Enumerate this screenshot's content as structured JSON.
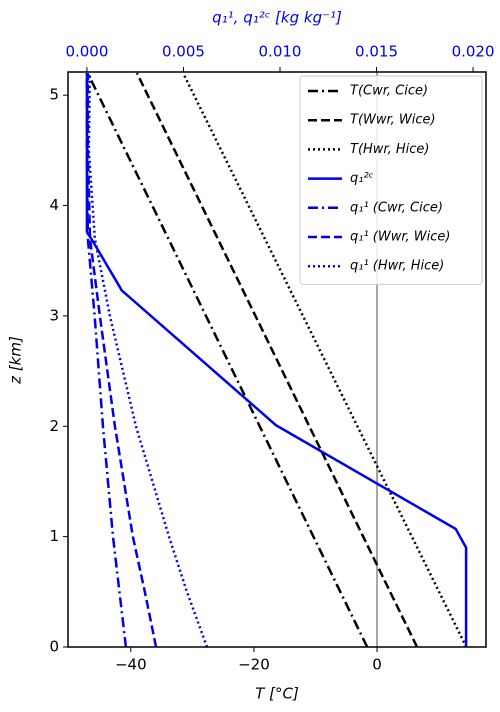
{
  "chart_data": {
    "type": "line",
    "x_label": "T [°C]",
    "x2_label": "q₁¹, q₁²ᶜ [kg kg⁻¹]",
    "y_label": "z [km]",
    "xlim": [
      -50.2,
      17.7
    ],
    "xticks": [
      {
        "value": -40,
        "label": "−40"
      },
      {
        "value": -20,
        "label": "−20"
      },
      0
    ],
    "x2lim": [
      -0.00098,
      0.02067
    ],
    "x2ticks": [
      {
        "value": 0,
        "label": "0.000"
      },
      {
        "value": 0.005,
        "label": "0.005"
      },
      {
        "value": 0.01,
        "label": "0.010"
      },
      {
        "value": 0.015,
        "label": "0.015"
      },
      {
        "value": 0.02,
        "label": "0.020"
      }
    ],
    "x2_color": "#0000ee",
    "ylim": [
      0,
      5.21
    ],
    "yticks": [
      0,
      1,
      2,
      3,
      4,
      5
    ],
    "vline": 0,
    "legend": "upper right",
    "series": [
      {
        "name": "T(Cwr, Cice)",
        "color": "#000000",
        "style": "dashdot",
        "axis": "x",
        "x": [
          -1.6,
          -47
        ],
        "y": [
          0,
          5.2
        ]
      },
      {
        "name": "T(Wwr, Wice)",
        "color": "#000000",
        "style": "dashed",
        "axis": "x",
        "x": [
          6.5,
          -39
        ],
        "y": [
          0,
          5.2
        ]
      },
      {
        "name": "T(Hwr, Hice)",
        "color": "#000000",
        "style": "dotted",
        "axis": "x",
        "x": [
          14.5,
          -31.5
        ],
        "y": [
          0,
          5.2
        ]
      },
      {
        "name": "q₁²ᶜ",
        "color": "#0000ee",
        "style": "solid",
        "axis": "x2",
        "x": [
          0.01964,
          0.01964,
          0.0191,
          0.00979,
          0.00181,
          0.00026,
          0,
          0
        ],
        "y": [
          0,
          0.9,
          1.07,
          2.01,
          3.23,
          3.69,
          3.76,
          5.2
        ]
      },
      {
        "name": "q₁¹ (Cwr, Cice)",
        "color": "#0000ee",
        "style": "dashdot",
        "axis": "x2",
        "x": [
          0.00202,
          0.00135,
          0.00083,
          0.0004,
          5e-05,
          0,
          0
        ],
        "y": [
          0,
          1,
          2,
          3,
          3.7,
          4.5,
          5.2
        ]
      },
      {
        "name": "q₁¹ (Wwr, Wice)",
        "color": "#0000ee",
        "style": "dashed",
        "axis": "x2",
        "x": [
          0.00358,
          0.003,
          0.00238,
          0.00145,
          0.00067,
          0.00016,
          5e-05,
          5e-05
        ],
        "y": [
          0,
          0.5,
          1,
          2,
          3,
          3.7,
          4.5,
          5.2
        ]
      },
      {
        "name": "q₁¹ (Hwr, Hice)",
        "color": "#0000ee",
        "style": "dotted",
        "axis": "x2",
        "x": [
          0.00622,
          0.00518,
          0.00425,
          0.00254,
          0.00119,
          0.00041,
          0.0001,
          0.00015
        ],
        "y": [
          0,
          0.5,
          1,
          2,
          3,
          3.7,
          4.5,
          5.2
        ]
      }
    ]
  }
}
